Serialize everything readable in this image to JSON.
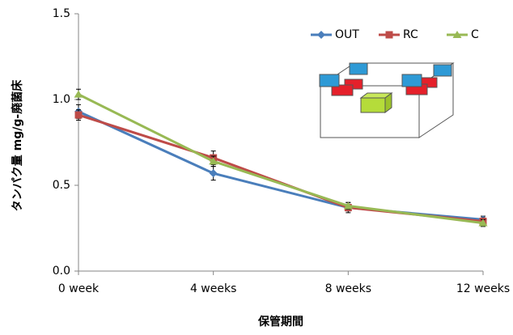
{
  "chart_data": {
    "type": "line",
    "y_label": "タンパク量 mg/g-廃菌床",
    "x_label": "保管期間",
    "categories": [
      "0 week",
      "4 weeks",
      "8 weeks",
      "12 weeks"
    ],
    "series": [
      {
        "name": "OUT",
        "color": "#4a7ebb",
        "marker": "diamond",
        "values": [
          0.93,
          0.57,
          0.37,
          0.3
        ],
        "errors": [
          0.04,
          0.04,
          0.02,
          0.02
        ]
      },
      {
        "name": "RC",
        "color": "#be4b48",
        "marker": "square",
        "values": [
          0.91,
          0.66,
          0.37,
          0.29
        ],
        "errors": [
          0.03,
          0.04,
          0.03,
          0.02
        ]
      },
      {
        "name": "C",
        "color": "#98b954",
        "marker": "triangle",
        "values": [
          1.03,
          0.64,
          0.38,
          0.28
        ],
        "errors": [
          0.03,
          0.03,
          0.02,
          0.02
        ]
      }
    ],
    "ylim": [
      0,
      1.5
    ],
    "yticks": [
      {
        "value": 0,
        "label": "0.0"
      },
      0.5,
      {
        "value": 1,
        "label": "1.0"
      },
      1.5
    ],
    "grid": false,
    "legend": "top-right"
  }
}
